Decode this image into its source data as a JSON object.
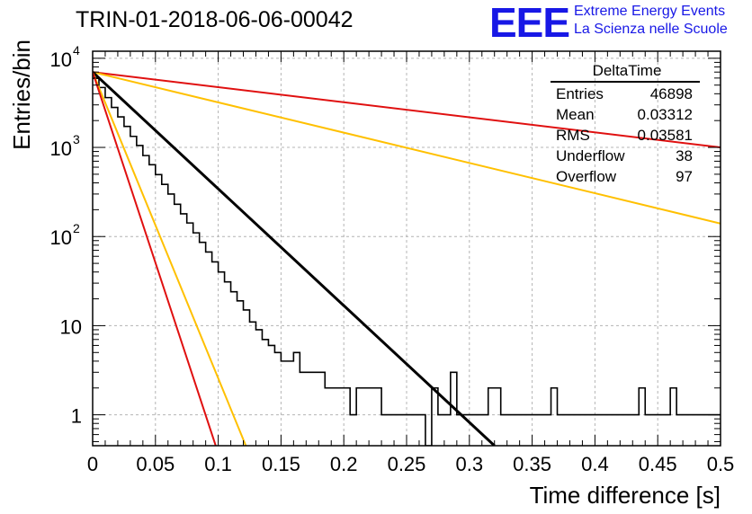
{
  "header": {
    "title": "TRIN-01-2018-06-06-00042",
    "logo_mark": "EEE",
    "logo_line1": "Extreme Energy Events",
    "logo_line2": "La Scienza nelle Scuole"
  },
  "stats_box": {
    "title": "DeltaTime",
    "rows": [
      {
        "label": "Entries",
        "value": "46898"
      },
      {
        "label": "Mean",
        "value": "0.03312"
      },
      {
        "label": "RMS",
        "value": "0.03581"
      },
      {
        "label": "Underflow",
        "value": "38"
      },
      {
        "label": "Overflow",
        "value": "97"
      }
    ]
  },
  "colors": {
    "histogram": "#000000",
    "fit": "#000000",
    "red_curve": "#e01010",
    "orange_curve": "#ffc000",
    "grid": "#b4b4b4"
  },
  "chart_data": {
    "type": "line",
    "xlabel": "Time difference [s]",
    "ylabel": "Entries/bin",
    "xlim": [
      0,
      0.5
    ],
    "ylim": [
      0.45,
      12000
    ],
    "yscale": "log",
    "grid": true,
    "x_ticks": [
      "0",
      "0.05",
      "0.1",
      "0.15",
      "0.2",
      "0.25",
      "0.3",
      "0.35",
      "0.4",
      "0.45",
      "0.5"
    ],
    "y_ticks": [
      {
        "value": 1,
        "base": "1",
        "exp": ""
      },
      {
        "value": 10,
        "base": "10",
        "exp": ""
      },
      {
        "value": 100,
        "base": "10",
        "exp": "2"
      },
      {
        "value": 1000,
        "base": "10",
        "exp": "3"
      },
      {
        "value": 10000,
        "base": "10",
        "exp": "4"
      }
    ],
    "histogram": {
      "bin_width": 0.005,
      "x_start": 0,
      "counts": [
        5950,
        4700,
        3620,
        2810,
        2200,
        1720,
        1330,
        1050,
        810,
        640,
        495,
        385,
        300,
        230,
        180,
        142,
        110,
        86,
        67,
        52,
        40,
        31,
        24,
        19,
        15,
        11,
        9,
        7,
        6,
        5,
        4,
        4,
        5,
        3,
        3,
        3,
        3,
        2,
        2,
        2,
        2,
        1,
        2,
        2,
        2,
        2,
        1,
        1,
        1,
        1,
        1,
        1,
        1,
        0,
        2,
        1,
        1,
        3,
        1,
        1,
        1,
        1,
        1,
        2,
        2,
        1,
        1,
        1,
        1,
        1,
        1,
        1,
        1,
        2,
        1,
        1,
        1,
        1,
        1,
        1,
        1,
        1,
        1,
        1,
        1,
        1,
        1,
        2,
        1,
        1,
        1,
        1,
        2,
        1,
        1,
        1,
        1,
        1,
        1,
        1
      ]
    },
    "series": [
      {
        "color": "red",
        "points": [
          [
            0,
            7000
          ],
          [
            0.5,
            1000
          ]
        ]
      },
      {
        "color": "orange",
        "points": [
          [
            0,
            7000
          ],
          [
            0.5,
            140
          ]
        ]
      },
      {
        "color": "black",
        "points": [
          [
            0,
            7000
          ],
          [
            0.32,
            0.45
          ]
        ]
      },
      {
        "color": "orange",
        "points": [
          [
            0,
            7000
          ],
          [
            0.122,
            0.45
          ]
        ]
      },
      {
        "color": "red",
        "points": [
          [
            0,
            7000
          ],
          [
            0.098,
            0.45
          ]
        ]
      }
    ]
  }
}
